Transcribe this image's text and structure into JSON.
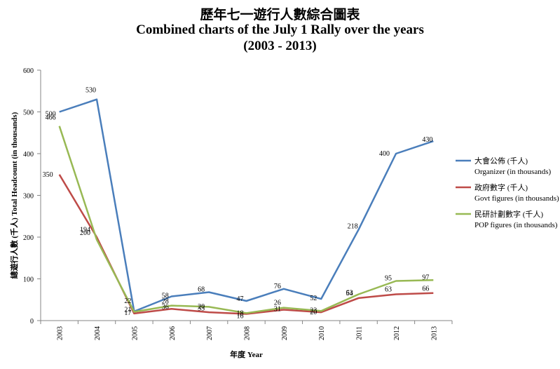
{
  "chart_data": {
    "type": "line",
    "title": "歷年七一遊行人數綜合圖表",
    "subtitle": "Combined charts of the July 1 Rally over the years",
    "subtitle2": "(2003 - 2013)",
    "xlabel": "年度 Year",
    "ylabel": "總遊行人數 (千人) Total Headcount (in thousands)",
    "categories": [
      "2003",
      "2004",
      "2005",
      "2006",
      "2007",
      "2008",
      "2009",
      "2010",
      "2011",
      "2012",
      "2013"
    ],
    "ylim": [
      0,
      600
    ],
    "yticks": [
      0,
      100,
      200,
      300,
      400,
      500,
      600
    ],
    "grid": false,
    "legend_position": "right",
    "series": [
      {
        "name": "大會公佈 (千人)",
        "name_en": "Organizer (in thousands)",
        "color": "#4a7ebb",
        "values": [
          500,
          530,
          22,
          58,
          68,
          47,
          76,
          52,
          218,
          400,
          430
        ],
        "labels": [
          "500",
          "530",
          "22",
          "58",
          "68",
          "47",
          "76",
          "52",
          "218",
          "400",
          "430"
        ]
      },
      {
        "name": "政府數字 (千人)",
        "name_en": "Govt figures (in thousands)",
        "color": "#be4b48",
        "values": [
          350,
          200,
          17,
          28,
          20,
          16,
          26,
          20,
          54,
          63,
          66
        ],
        "labels": [
          "350",
          "200",
          "17",
          "28",
          "20",
          "16",
          "26",
          "20",
          "54",
          "63",
          "66"
        ]
      },
      {
        "name": "民研計劃數字 (千人)",
        "name_en": "POP figures (in thousands)",
        "color": "#98b954",
        "values": [
          466,
          194,
          21,
          36,
          33,
          18,
          31,
          23,
          63,
          95,
          97
        ],
        "labels": [
          "466",
          "194",
          "21",
          "36",
          "33",
          "18",
          "31",
          "23",
          "63",
          "95",
          "97"
        ]
      }
    ]
  }
}
